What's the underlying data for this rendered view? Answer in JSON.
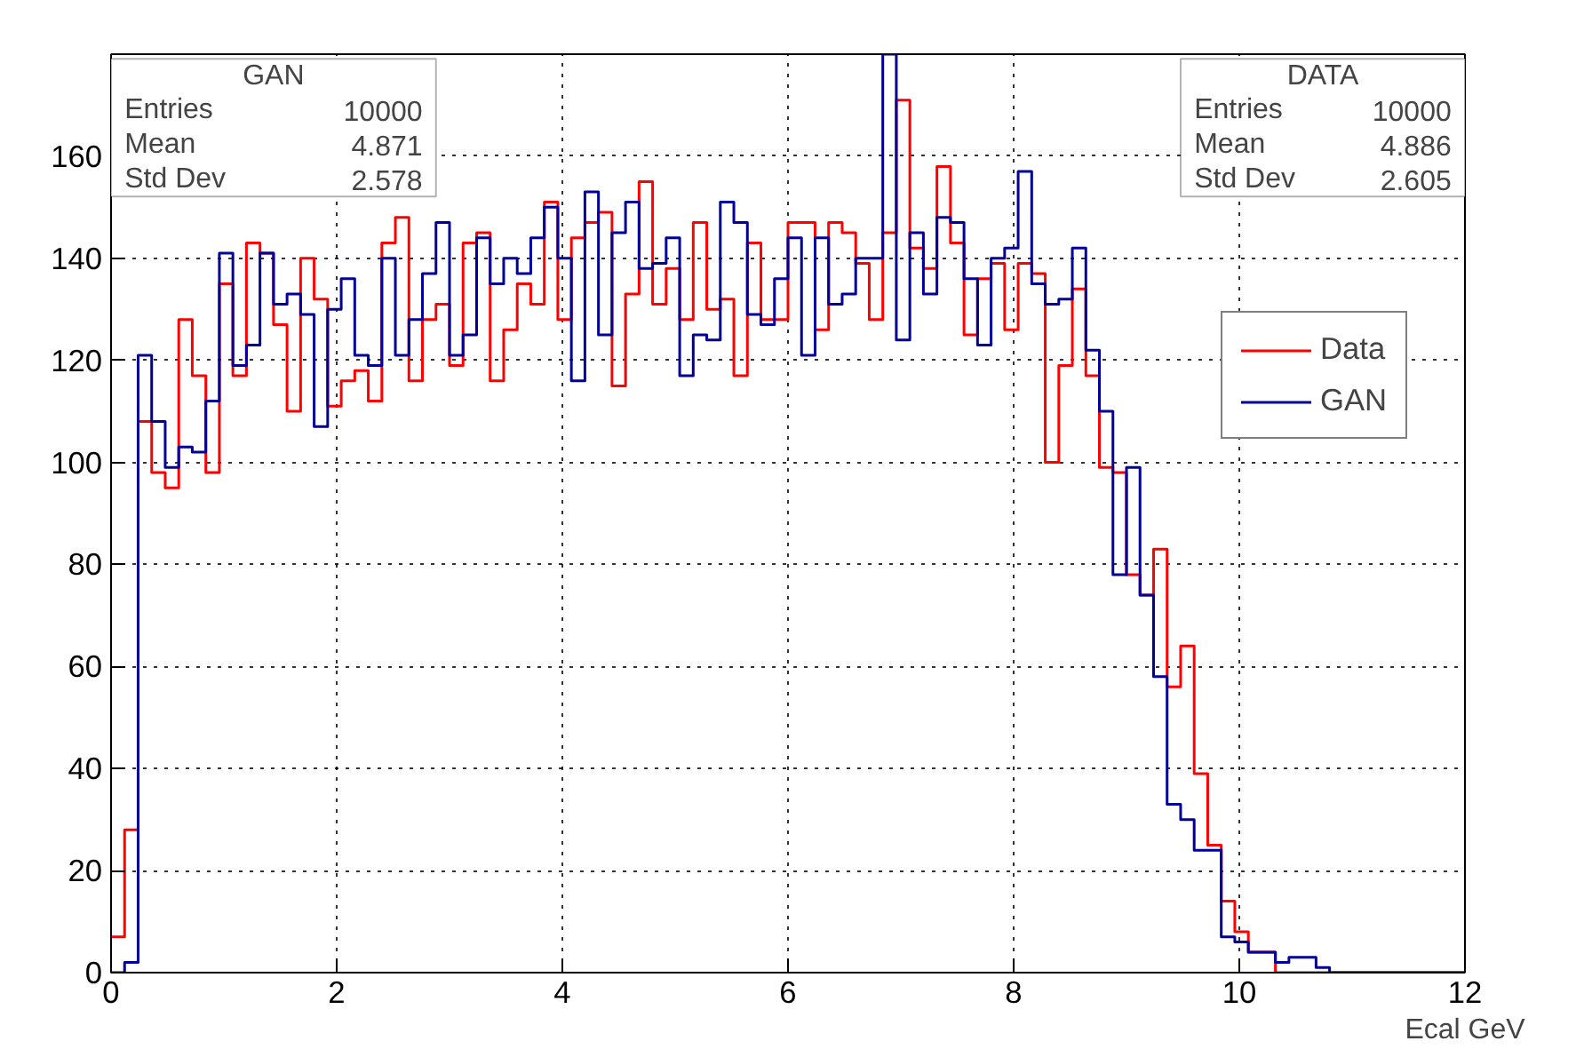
{
  "chart_data": {
    "type": "histogram",
    "xlabel": "Ecal GeV",
    "bins": [
      0,
      0.12,
      0.24,
      0.36,
      0.48,
      0.6,
      0.72,
      0.84,
      0.96,
      1.08,
      1.2,
      1.32,
      1.44,
      1.56,
      1.68,
      1.8,
      1.92,
      2.04,
      2.16,
      2.28,
      2.4,
      2.52,
      2.64,
      2.76,
      2.88,
      3,
      3.12,
      3.24,
      3.36,
      3.48,
      3.6,
      3.72,
      3.84,
      3.96,
      4.08,
      4.2,
      4.32,
      4.44,
      4.56,
      4.68,
      4.8,
      4.92,
      5.04,
      5.16,
      5.28,
      5.4,
      5.52,
      5.64,
      5.76,
      5.88,
      6,
      6.12,
      6.24,
      6.36,
      6.48,
      6.6,
      6.72,
      6.84,
      6.96,
      7.08,
      7.2,
      7.32,
      7.44,
      7.56,
      7.68,
      7.8,
      7.92,
      8.04,
      8.16,
      8.28,
      8.4,
      8.52,
      8.64,
      8.76,
      8.88,
      9,
      9.12,
      9.24,
      9.36,
      9.48,
      9.6,
      9.72,
      9.84,
      9.96,
      10.08,
      10.2,
      10.32,
      10.44,
      10.56,
      10.68,
      10.8,
      10.92,
      11.04,
      11.16,
      11.28,
      11.4,
      11.52,
      11.64,
      11.76,
      11.88,
      12
    ],
    "series": [
      {
        "name": "Data",
        "color": "#ff0000",
        "values": [
          7,
          28,
          108,
          98,
          95,
          128,
          117,
          98,
          135,
          117,
          143,
          141,
          127,
          110,
          140,
          132,
          111,
          116,
          118,
          112,
          143,
          148,
          116,
          128,
          131,
          119,
          143,
          145,
          116,
          126,
          135,
          131,
          151,
          128,
          144,
          147,
          149,
          115,
          133,
          155,
          131,
          138,
          128,
          147,
          130,
          132,
          117,
          143,
          128,
          128,
          147,
          147,
          126,
          147,
          145,
          139,
          128,
          145,
          171,
          142,
          138,
          158,
          143,
          125,
          136,
          139,
          126,
          139,
          137,
          100,
          119,
          134,
          117,
          99,
          98,
          78,
          74,
          83,
          56,
          64,
          39,
          25,
          14,
          8,
          4,
          4,
          0,
          0,
          0,
          0,
          0,
          0,
          0,
          0,
          0,
          0,
          0,
          0,
          0,
          0
        ]
      },
      {
        "name": "GAN",
        "color": "#000099",
        "values": [
          0,
          2,
          121,
          108,
          99,
          103,
          102,
          112,
          141,
          119,
          123,
          141,
          131,
          133,
          129,
          107,
          130,
          136,
          121,
          119,
          140,
          121,
          128,
          137,
          147,
          121,
          125,
          144,
          135,
          140,
          137,
          144,
          150,
          140,
          116,
          153,
          125,
          145,
          151,
          138,
          139,
          144,
          117,
          125,
          124,
          151,
          147,
          129,
          127,
          136,
          144,
          121,
          144,
          131,
          133,
          140,
          140,
          180,
          124,
          145,
          133,
          148,
          147,
          136,
          123,
          140,
          142,
          157,
          135,
          131,
          132,
          142,
          122,
          110,
          78,
          99,
          74,
          58,
          33,
          30,
          24,
          24,
          7,
          6,
          4,
          4,
          2,
          3,
          3,
          1,
          0,
          0,
          0,
          0,
          0,
          0,
          0,
          0,
          0,
          0
        ]
      }
    ],
    "xlim": [
      0,
      12
    ],
    "xticks": [
      0,
      2,
      4,
      6,
      8,
      10,
      12
    ],
    "ylim": [
      0,
      180
    ],
    "yticks": [
      0,
      20,
      40,
      60,
      80,
      100,
      120,
      140,
      160
    ],
    "grid": true,
    "legend": "top right",
    "annotations": [
      "GAN",
      "Entries 10000",
      "Mean 4.871",
      "Std Dev 2.578",
      "DATA",
      "Entries 10000",
      "Mean 4.886",
      "Std Dev 2.605"
    ]
  }
}
